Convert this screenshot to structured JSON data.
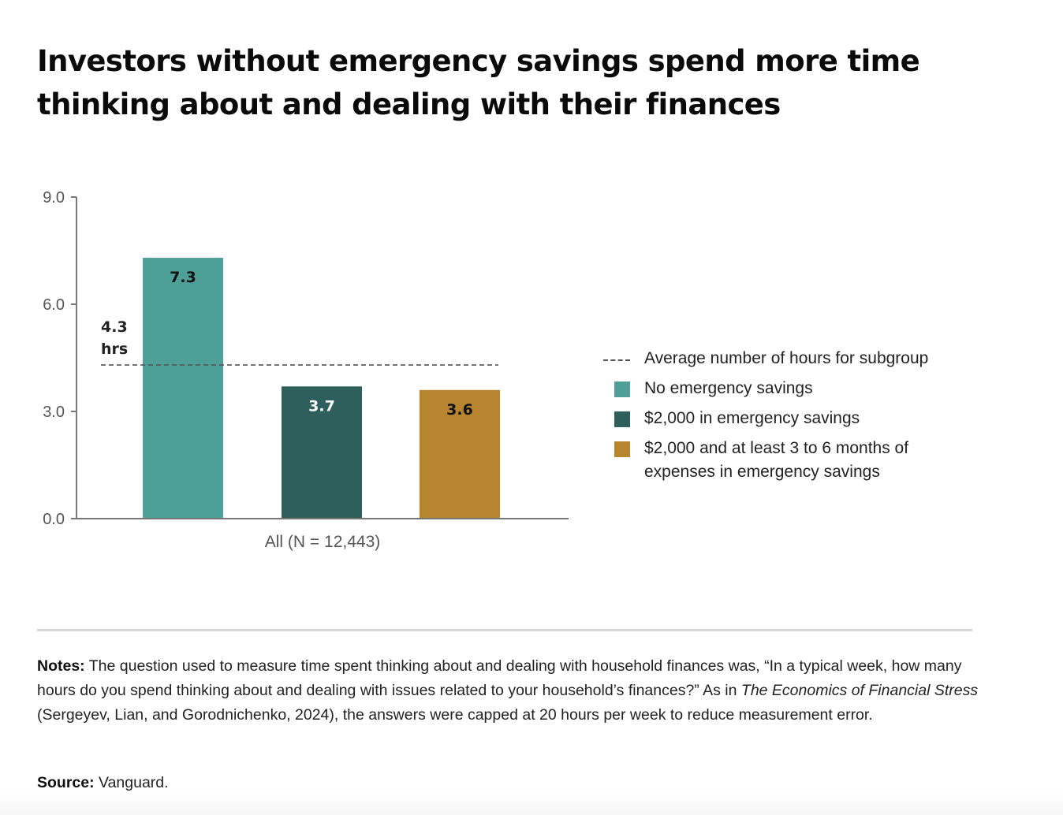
{
  "title": "Investors without emergency savings spend more time thinking about and dealing with their finances",
  "chart_data": {
    "type": "bar",
    "title": "Investors without emergency savings spend more time thinking about and dealing with their finances",
    "xlabel": "",
    "ylabel": "",
    "categories": [
      "All (N = 12,443)"
    ],
    "series": [
      {
        "name": "No emergency savings",
        "values": [
          7.3
        ],
        "color": "#4e9f98",
        "label_color": "#111111"
      },
      {
        "name": "$2,000 in emergency savings",
        "values": [
          3.7
        ],
        "color": "#2e5f5c",
        "label_color": "#ffffff"
      },
      {
        "name": "$2,000 and at least 3 to 6 months of expenses in emergency savings",
        "values": [
          3.6
        ],
        "color": "#b78530",
        "label_color": "#111111"
      }
    ],
    "value_labels": [
      "7.3",
      "3.7",
      "3.6"
    ],
    "reference_line": {
      "name": "Average number of hours for subgroup",
      "value": 4.3,
      "label_line1": "4.3",
      "label_line2": "hrs",
      "style": "dashed"
    },
    "ylim": [
      0,
      9
    ],
    "yticks": [
      0,
      3,
      6,
      9
    ],
    "ytick_labels": [
      "0.0",
      "3.0",
      "6.0",
      "9.0"
    ],
    "grid": false,
    "legend_position": "right"
  },
  "legend": [
    {
      "type": "dash",
      "label": "Average number of hours for subgroup"
    },
    {
      "type": "swatch",
      "color": "#4e9f98",
      "label": "No emergency savings"
    },
    {
      "type": "swatch",
      "color": "#2e5f5c",
      "label": "$2,000 in emergency savings"
    },
    {
      "type": "swatch",
      "color": "#b78530",
      "label": "$2,000 and at least 3 to 6 months of expenses in emergency savings"
    }
  ],
  "notes": {
    "label": "Notes:",
    "text_before_italic": " The question used to measure time spent thinking about and dealing with household finances was, “In a typical week, how many hours do you spend thinking about and dealing with issues related to your household’s finances?” As in ",
    "italic": "The Economics of Financial Stress",
    "text_after_italic": " (Sergeyev, Lian, and Gorodnichenko, 2024), the answers were capped at 20 hours per week to reduce measurement error."
  },
  "source": {
    "label": "Source:",
    "text": " Vanguard."
  }
}
